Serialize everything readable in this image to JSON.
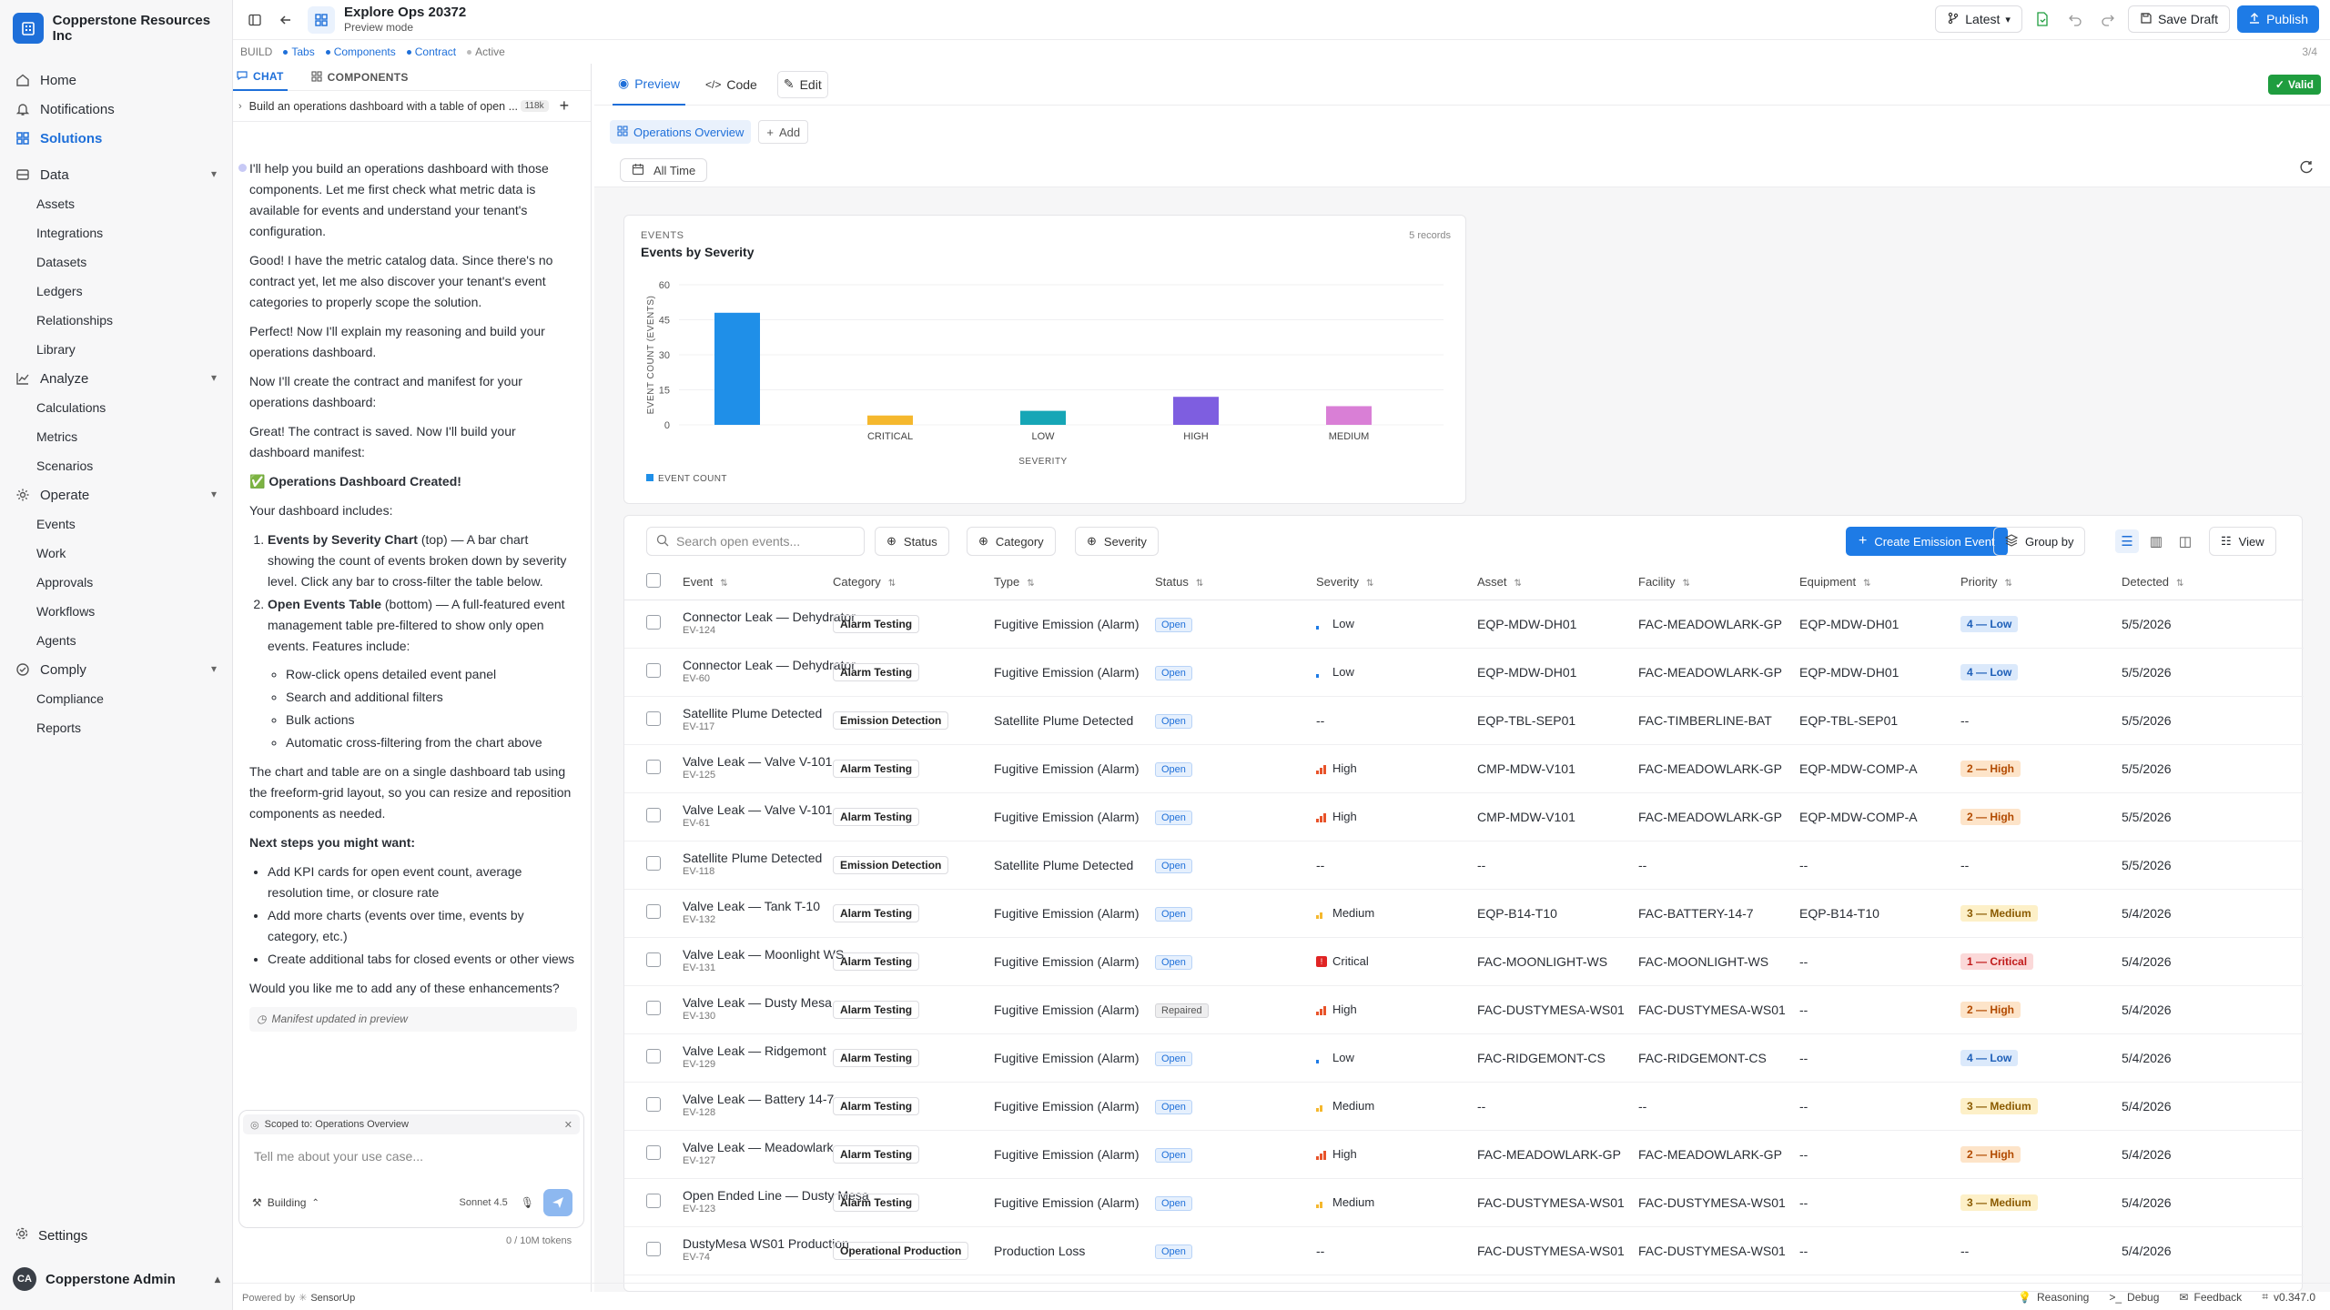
{
  "org": {
    "name": "Copperstone Resources Inc"
  },
  "sidebar": {
    "home": "Home",
    "notifications": "Notifications",
    "solutions": "Solutions",
    "data": {
      "label": "Data",
      "items": [
        "Assets",
        "Integrations",
        "Datasets",
        "Ledgers",
        "Relationships",
        "Library"
      ]
    },
    "analyze": {
      "label": "Analyze",
      "items": [
        "Calculations",
        "Metrics",
        "Scenarios"
      ]
    },
    "operate": {
      "label": "Operate",
      "items": [
        "Events",
        "Work",
        "Approvals",
        "Workflows",
        "Agents"
      ]
    },
    "comply": {
      "label": "Comply",
      "items": [
        "Compliance",
        "Reports"
      ]
    },
    "settings": "Settings",
    "user": {
      "initials": "CA",
      "name": "Copperstone Admin"
    }
  },
  "topbar": {
    "title": "Explore Ops 20372",
    "subtitle": "Preview mode",
    "version": "Latest",
    "save_draft": "Save Draft",
    "publish": "Publish"
  },
  "breadcrumb": {
    "build": "BUILD",
    "tabs": "Tabs",
    "components": "Components",
    "contract": "Contract",
    "active": "Active",
    "step": "3/4"
  },
  "chat": {
    "tab_chat": "CHAT",
    "tab_components": "COMPONENTS",
    "thread_title": "Build an operations dashboard with a table of open ...",
    "thread_tokens": "118k",
    "p1": "I'll help you build an operations dashboard with those components. Let me first check what metric data is available for events and understand your tenant's configuration.",
    "p2": "Good! I have the metric catalog data. Since there's no contract yet, let me also discover your tenant's event categories to properly scope the solution.",
    "p3": "Perfect! Now I'll explain my reasoning and build your operations dashboard.",
    "p4": "Now I'll create the contract and manifest for your operations dashboard:",
    "p5": "Great! The contract is saved. Now I'll build your dashboard manifest:",
    "created": "✅ Operations Dashboard Created!",
    "includes": "Your dashboard includes:",
    "item1_bold": "Events by Severity Chart",
    "item1_text": " (top) — A bar chart showing the count of events broken down by severity level. Click any bar to cross-filter the table below.",
    "item2_bold": "Open Events Table",
    "item2_text": " (bottom) — A full-featured event management table pre-filtered to show only open events. Features include:",
    "features": [
      "Row-click opens detailed event panel",
      "Search and additional filters",
      "Bulk actions",
      "Automatic cross-filtering from the chart above"
    ],
    "p6": "The chart and table are on a single dashboard tab using the freeform-grid layout, so you can resize and reposition components as needed.",
    "next_steps": "Next steps you might want:",
    "steps": [
      "Add KPI cards for open event count, average resolution time, or closure rate",
      "Add more charts (events over time, events by category, etc.)",
      "Create additional tabs for closed events or other views"
    ],
    "p7": "Would you like me to add any of these enhancements?",
    "manifest_updated": "Manifest updated in preview",
    "scope": "Scoped to: Operations Overview",
    "placeholder": "Tell me about your use case...",
    "mode": "Building",
    "model": "Sonnet 4.5",
    "tokens": "0 / 10M tokens",
    "powered": "Powered by",
    "brand": "SensorUp"
  },
  "main": {
    "tab_preview": "Preview",
    "tab_code": "Code",
    "tab_edit": "Edit",
    "valid": "Valid",
    "dash_tab": "Operations Overview",
    "add": "Add",
    "all_time": "All Time"
  },
  "chart_card": {
    "label": "EVENTS",
    "title": "Events by Severity",
    "count": "5 records"
  },
  "chart_data": {
    "type": "bar",
    "categories": [
      "",
      "CRITICAL",
      "LOW",
      "HIGH",
      "MEDIUM"
    ],
    "values": [
      48,
      4,
      6,
      12,
      8
    ],
    "colors": [
      "#1f8fe8",
      "#f5b82e",
      "#16a6b6",
      "#7e5ee0",
      "#d97fd6"
    ],
    "xlabel": "SEVERITY",
    "ylabel": "EVENT COUNT (EVENTS)",
    "yticks": [
      0,
      15,
      30,
      45,
      60
    ],
    "ylim": [
      0,
      60
    ],
    "legend": "EVENT COUNT",
    "legend_placement": "bottom-left"
  },
  "table": {
    "search_placeholder": "Search open events...",
    "filters": [
      "Status",
      "Category",
      "Severity"
    ],
    "create": "Create Emission Event",
    "group_by": "Group by",
    "view": "View",
    "columns": [
      "Event",
      "Category",
      "Type",
      "Status",
      "Severity",
      "Asset",
      "Facility",
      "Equipment",
      "Priority",
      "Detected"
    ],
    "rows": [
      {
        "title": "Connector Leak — Dehydrator",
        "id": "EV-124",
        "category": "Alarm Testing",
        "type": "Fugitive Emission (Alarm)",
        "status": "Open",
        "severity": "Low",
        "asset": "EQP-MDW-DH01",
        "facility": "FAC-MEADOWLARK-GP",
        "equipment": "EQP-MDW-DH01",
        "priority": "4 — Low",
        "detected": "5/5/2026"
      },
      {
        "title": "Connector Leak — Dehydrator",
        "id": "EV-60",
        "category": "Alarm Testing",
        "type": "Fugitive Emission (Alarm)",
        "status": "Open",
        "severity": "Low",
        "asset": "EQP-MDW-DH01",
        "facility": "FAC-MEADOWLARK-GP",
        "equipment": "EQP-MDW-DH01",
        "priority": "4 — Low",
        "detected": "5/5/2026"
      },
      {
        "title": "Satellite Plume Detected",
        "id": "EV-117",
        "category": "Emission Detection",
        "type": "Satellite Plume Detected",
        "status": "Open",
        "severity": "--",
        "asset": "EQP-TBL-SEP01",
        "facility": "FAC-TIMBERLINE-BAT",
        "equipment": "EQP-TBL-SEP01",
        "priority": "--",
        "detected": "5/5/2026"
      },
      {
        "title": "Valve Leak — Valve V-101",
        "id": "EV-125",
        "category": "Alarm Testing",
        "type": "Fugitive Emission (Alarm)",
        "status": "Open",
        "severity": "High",
        "asset": "CMP-MDW-V101",
        "facility": "FAC-MEADOWLARK-GP",
        "equipment": "EQP-MDW-COMP-A",
        "priority": "2 — High",
        "detected": "5/5/2026"
      },
      {
        "title": "Valve Leak — Valve V-101",
        "id": "EV-61",
        "category": "Alarm Testing",
        "type": "Fugitive Emission (Alarm)",
        "status": "Open",
        "severity": "High",
        "asset": "CMP-MDW-V101",
        "facility": "FAC-MEADOWLARK-GP",
        "equipment": "EQP-MDW-COMP-A",
        "priority": "2 — High",
        "detected": "5/5/2026"
      },
      {
        "title": "Satellite Plume Detected",
        "id": "EV-118",
        "category": "Emission Detection",
        "type": "Satellite Plume Detected",
        "status": "Open",
        "severity": "--",
        "asset": "--",
        "facility": "--",
        "equipment": "--",
        "priority": "--",
        "detected": "5/5/2026"
      },
      {
        "title": "Valve Leak — Tank T-10",
        "id": "EV-132",
        "category": "Alarm Testing",
        "type": "Fugitive Emission (Alarm)",
        "status": "Open",
        "severity": "Medium",
        "asset": "EQP-B14-T10",
        "facility": "FAC-BATTERY-14-7",
        "equipment": "EQP-B14-T10",
        "priority": "3 — Medium",
        "detected": "5/4/2026"
      },
      {
        "title": "Valve Leak — Moonlight WS",
        "id": "EV-131",
        "category": "Alarm Testing",
        "type": "Fugitive Emission (Alarm)",
        "status": "Open",
        "severity": "Critical",
        "asset": "FAC-MOONLIGHT-WS",
        "facility": "FAC-MOONLIGHT-WS",
        "equipment": "--",
        "priority": "1 — Critical",
        "detected": "5/4/2026"
      },
      {
        "title": "Valve Leak — Dusty Mesa",
        "id": "EV-130",
        "category": "Alarm Testing",
        "type": "Fugitive Emission (Alarm)",
        "status": "Repaired",
        "severity": "High",
        "asset": "FAC-DUSTYMESA-WS01",
        "facility": "FAC-DUSTYMESA-WS01",
        "equipment": "--",
        "priority": "2 — High",
        "detected": "5/4/2026"
      },
      {
        "title": "Valve Leak — Ridgemont",
        "id": "EV-129",
        "category": "Alarm Testing",
        "type": "Fugitive Emission (Alarm)",
        "status": "Open",
        "severity": "Low",
        "asset": "FAC-RIDGEMONT-CS",
        "facility": "FAC-RIDGEMONT-CS",
        "equipment": "--",
        "priority": "4 — Low",
        "detected": "5/4/2026"
      },
      {
        "title": "Valve Leak — Battery 14-7",
        "id": "EV-128",
        "category": "Alarm Testing",
        "type": "Fugitive Emission (Alarm)",
        "status": "Open",
        "severity": "Medium",
        "asset": "--",
        "facility": "--",
        "equipment": "--",
        "priority": "3 — Medium",
        "detected": "5/4/2026"
      },
      {
        "title": "Valve Leak — Meadowlark",
        "id": "EV-127",
        "category": "Alarm Testing",
        "type": "Fugitive Emission (Alarm)",
        "status": "Open",
        "severity": "High",
        "asset": "FAC-MEADOWLARK-GP",
        "facility": "FAC-MEADOWLARK-GP",
        "equipment": "--",
        "priority": "2 — High",
        "detected": "5/4/2026"
      },
      {
        "title": "Open Ended Line — Dusty Mesa",
        "id": "EV-123",
        "category": "Alarm Testing",
        "type": "Fugitive Emission (Alarm)",
        "status": "Open",
        "severity": "Medium",
        "asset": "FAC-DUSTYMESA-WS01",
        "facility": "FAC-DUSTYMESA-WS01",
        "equipment": "--",
        "priority": "3 — Medium",
        "detected": "5/4/2026"
      },
      {
        "title": "DustyMesa WS01 Production",
        "id": "EV-74",
        "category": "Operational Production",
        "type": "Production Loss",
        "status": "Open",
        "severity": "--",
        "asset": "FAC-DUSTYMESA-WS01",
        "facility": "FAC-DUSTYMESA-WS01",
        "equipment": "--",
        "priority": "--",
        "detected": "5/4/2026"
      }
    ]
  },
  "statusbar": {
    "reasoning": "Reasoning",
    "debug": "Debug",
    "feedback": "Feedback",
    "version": "v0.347.0"
  }
}
